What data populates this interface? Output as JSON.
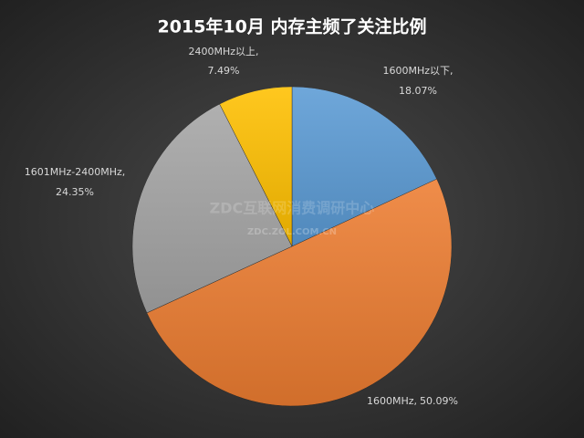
{
  "chart_data": {
    "type": "pie",
    "title": "2015年10月  内存主频了关注比例",
    "categories": [
      "1600MHz以下,",
      "1600MHz,",
      "1601MHz-2400MHz,",
      "2400MHz以上,"
    ],
    "values": [
      18.07,
      50.09,
      24.35,
      7.49
    ],
    "value_labels": [
      "18.07%",
      "50.09%",
      "24.35%",
      "7.49%"
    ],
    "colors": [
      "#5b9bd5",
      "#ed7d31",
      "#a5a5a5",
      "#ffc000"
    ],
    "watermark": "ZDC互联网消费调研中心",
    "watermark_url": "ZDC.ZOL.COM.CN"
  }
}
